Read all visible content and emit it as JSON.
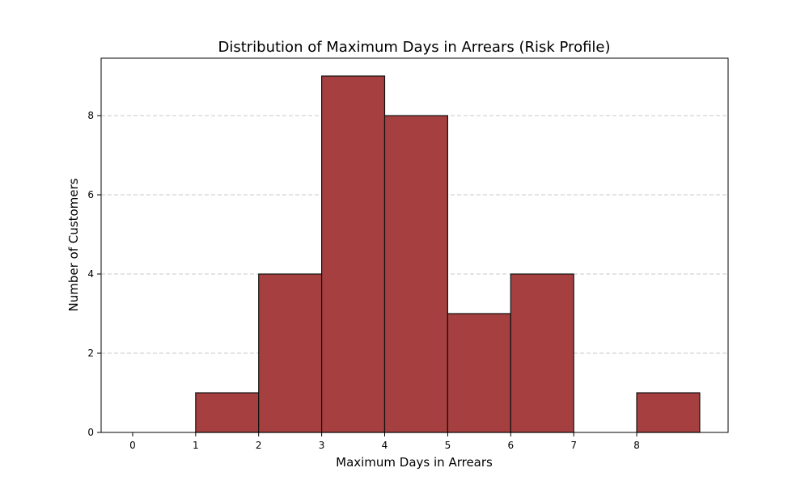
{
  "chart_data": {
    "type": "bar",
    "title": "Distribution of Maximum Days in Arrears (Risk Profile)",
    "xlabel": "Maximum Days in Arrears",
    "ylabel": "Number of Customers",
    "bins": [
      {
        "start": 0,
        "end": 1,
        "count": 0
      },
      {
        "start": 1,
        "end": 2,
        "count": 1
      },
      {
        "start": 2,
        "end": 3,
        "count": 4
      },
      {
        "start": 3,
        "end": 4,
        "count": 9
      },
      {
        "start": 4,
        "end": 5,
        "count": 8
      },
      {
        "start": 5,
        "end": 6,
        "count": 3
      },
      {
        "start": 6,
        "end": 7,
        "count": 4
      },
      {
        "start": 7,
        "end": 8,
        "count": 0
      },
      {
        "start": 8,
        "end": 9,
        "count": 1
      }
    ],
    "xlim": [
      -0.5,
      9.45
    ],
    "ylim": [
      0,
      9.45
    ],
    "x_ticks": [
      "0",
      "1",
      "2",
      "3",
      "4",
      "5",
      "6",
      "7",
      "8"
    ],
    "y_ticks": [
      "0",
      "2",
      "4",
      "6",
      "8"
    ],
    "grid": {
      "axis": "y",
      "style": "dashed"
    },
    "colors": {
      "bar_fill": "#a63f3f",
      "bar_edge": "#111111",
      "grid": "#c8c8c8",
      "axes": "#000000"
    }
  }
}
